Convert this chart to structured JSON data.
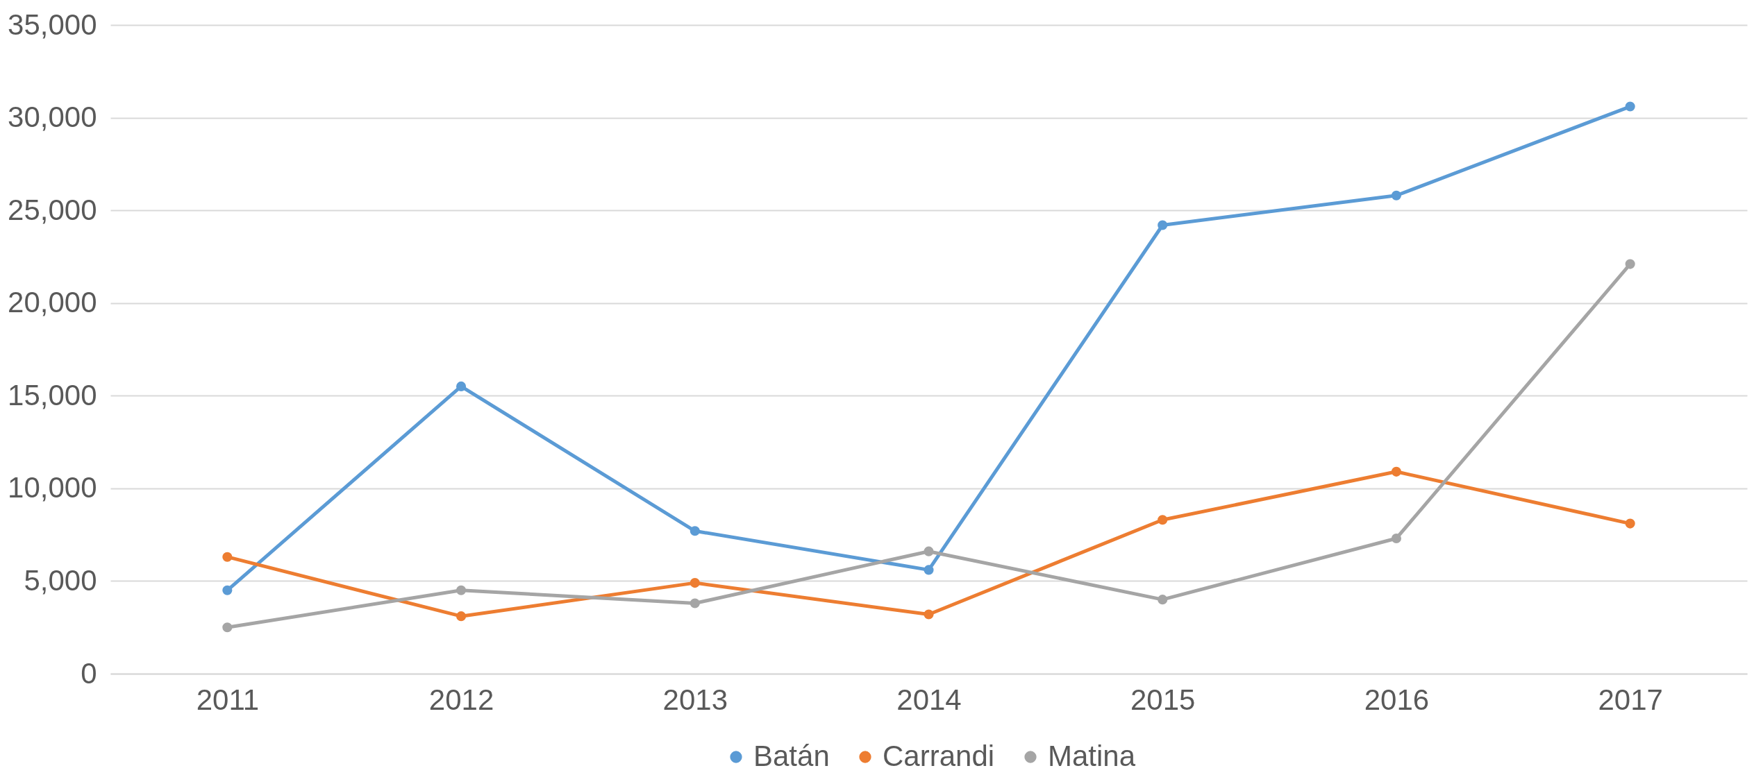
{
  "chart_data": {
    "type": "line",
    "categories": [
      "2011",
      "2012",
      "2013",
      "2014",
      "2015",
      "2016",
      "2017"
    ],
    "series": [
      {
        "name": "Batán",
        "color": "#5b9bd5",
        "values": [
          4500,
          15500,
          7700,
          5600,
          24200,
          25800,
          30600
        ]
      },
      {
        "name": "Carrandi",
        "color": "#ed7d31",
        "values": [
          6300,
          3100,
          4900,
          3200,
          8300,
          10900,
          8100
        ]
      },
      {
        "name": "Matina",
        "color": "#a5a5a5",
        "values": [
          2500,
          4500,
          3800,
          6600,
          4000,
          7300,
          22100
        ]
      }
    ],
    "ylim": [
      0,
      35000
    ],
    "yticks": [
      0,
      {
        "value": 5000,
        "label": "5,000"
      },
      {
        "value": 10000,
        "label": "10,000"
      },
      {
        "value": 15000,
        "label": "15,000"
      },
      {
        "value": 20000,
        "label": "20,000"
      },
      {
        "value": 25000,
        "label": "25,000"
      },
      {
        "value": 30000,
        "label": "30,000"
      },
      {
        "value": 35000,
        "label": "35,000"
      }
    ],
    "grid": "y",
    "legend": "bottom",
    "marker": "circle",
    "line_style": "solid"
  }
}
